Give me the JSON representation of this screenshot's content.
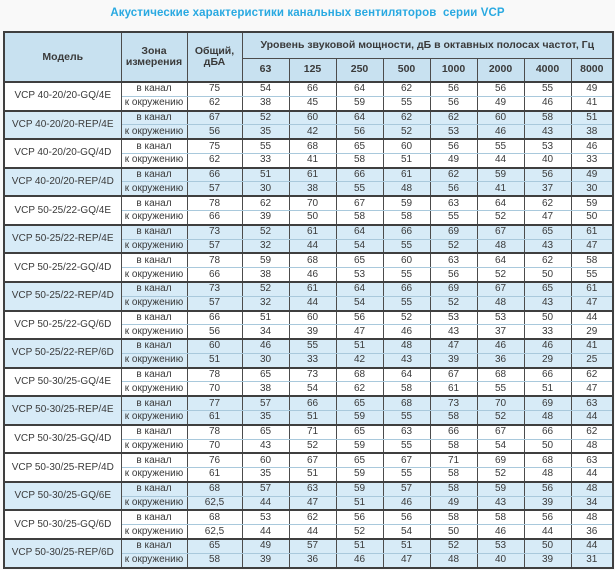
{
  "title": "Акустические характеристики канальных вентиляторов  серии VCP",
  "table": {
    "col_model": "Модель",
    "col_zone": "Зона измерения",
    "col_total": "Общий, дБА",
    "col_spl": "Уровень звуковой мощности, дБ в октавных полосах частот, Гц",
    "frequencies": [
      "63",
      "125",
      "250",
      "500",
      "1000",
      "2000",
      "4000",
      "8000"
    ],
    "models": [
      {
        "name": "VCP 40-20/20-GQ/4E",
        "shaded": false,
        "rows": [
          {
            "zone": "в канал",
            "total": "75",
            "values": [
              54,
              66,
              64,
              62,
              56,
              56,
              55,
              49
            ]
          },
          {
            "zone": "к окружению",
            "total": "62",
            "values": [
              38,
              45,
              59,
              55,
              56,
              49,
              46,
              41
            ]
          }
        ]
      },
      {
        "name": "VCP 40-20/20-REP/4E",
        "shaded": true,
        "rows": [
          {
            "zone": "в канал",
            "total": "67",
            "values": [
              52,
              60,
              64,
              62,
              62,
              60,
              58,
              51
            ]
          },
          {
            "zone": "к окружению",
            "total": "56",
            "values": [
              35,
              42,
              56,
              52,
              53,
              46,
              43,
              38
            ]
          }
        ]
      },
      {
        "name": "VCP 40-20/20-GQ/4D",
        "shaded": false,
        "rows": [
          {
            "zone": "в канал",
            "total": "75",
            "values": [
              55,
              68,
              65,
              60,
              56,
              55,
              53,
              46
            ]
          },
          {
            "zone": "к окружению",
            "total": "62",
            "values": [
              33,
              41,
              58,
              51,
              49,
              44,
              40,
              33
            ]
          }
        ]
      },
      {
        "name": "VCP 40-20/20-REP/4D",
        "shaded": true,
        "rows": [
          {
            "zone": "в канал",
            "total": "66",
            "values": [
              51,
              61,
              66,
              61,
              62,
              59,
              56,
              49
            ]
          },
          {
            "zone": "к окружению",
            "total": "57",
            "values": [
              30,
              38,
              55,
              48,
              56,
              41,
              37,
              30
            ]
          }
        ]
      },
      {
        "name": "VCP 50-25/22-GQ/4E",
        "shaded": false,
        "rows": [
          {
            "zone": "в канал",
            "total": "78",
            "values": [
              62,
              70,
              67,
              59,
              63,
              64,
              62,
              59
            ]
          },
          {
            "zone": "к окружению",
            "total": "66",
            "values": [
              39,
              50,
              58,
              58,
              55,
              52,
              47,
              50
            ]
          }
        ]
      },
      {
        "name": "VCP 50-25/22-REP/4E",
        "shaded": true,
        "rows": [
          {
            "zone": "в канал",
            "total": "73",
            "values": [
              52,
              61,
              64,
              66,
              69,
              67,
              65,
              61
            ]
          },
          {
            "zone": "к окружению",
            "total": "57",
            "values": [
              32,
              44,
              54,
              55,
              52,
              48,
              43,
              47
            ]
          }
        ]
      },
      {
        "name": "VCP 50-25/22-GQ/4D",
        "shaded": false,
        "rows": [
          {
            "zone": "в канал",
            "total": "78",
            "values": [
              59,
              68,
              65,
              60,
              63,
              64,
              62,
              58
            ]
          },
          {
            "zone": "к окружению",
            "total": "66",
            "values": [
              38,
              46,
              53,
              55,
              56,
              52,
              50,
              55
            ]
          }
        ]
      },
      {
        "name": "VCP 50-25/22-REP/4D",
        "shaded": true,
        "rows": [
          {
            "zone": "в канал",
            "total": "73",
            "values": [
              52,
              61,
              64,
              66,
              69,
              67,
              65,
              61
            ]
          },
          {
            "zone": "к окружению",
            "total": "57",
            "values": [
              32,
              44,
              54,
              55,
              52,
              48,
              43,
              47
            ]
          }
        ]
      },
      {
        "name": "VCP 50-25/22-GQ/6D",
        "shaded": false,
        "rows": [
          {
            "zone": "в канал",
            "total": "66",
            "values": [
              51,
              60,
              56,
              52,
              53,
              53,
              50,
              44
            ]
          },
          {
            "zone": "к окружению",
            "total": "56",
            "values": [
              34,
              39,
              47,
              46,
              43,
              37,
              33,
              29
            ]
          }
        ]
      },
      {
        "name": "VCP 50-25/22-REP/6D",
        "shaded": true,
        "rows": [
          {
            "zone": "в канал",
            "total": "60",
            "values": [
              46,
              55,
              51,
              48,
              47,
              46,
              46,
              41
            ]
          },
          {
            "zone": "к окружению",
            "total": "51",
            "values": [
              30,
              33,
              42,
              43,
              39,
              36,
              29,
              25
            ]
          }
        ]
      },
      {
        "name": "VCP 50-30/25-GQ/4E",
        "shaded": false,
        "rows": [
          {
            "zone": "в канал",
            "total": "78",
            "values": [
              65,
              73,
              68,
              64,
              67,
              68,
              66,
              62
            ]
          },
          {
            "zone": "к окружению",
            "total": "70",
            "values": [
              38,
              54,
              62,
              58,
              61,
              55,
              51,
              47
            ]
          }
        ]
      },
      {
        "name": "VCP 50-30/25-REP/4E",
        "shaded": true,
        "rows": [
          {
            "zone": "в канал",
            "total": "77",
            "values": [
              57,
              66,
              65,
              68,
              73,
              70,
              69,
              63
            ]
          },
          {
            "zone": "к окружению",
            "total": "61",
            "values": [
              35,
              51,
              59,
              55,
              58,
              52,
              48,
              44
            ]
          }
        ]
      },
      {
        "name": "VCP 50-30/25-GQ/4D",
        "shaded": false,
        "rows": [
          {
            "zone": "в канал",
            "total": "78",
            "values": [
              65,
              71,
              65,
              63,
              66,
              67,
              66,
              62
            ]
          },
          {
            "zone": "к окружению",
            "total": "70",
            "values": [
              43,
              52,
              59,
              55,
              58,
              54,
              50,
              48
            ]
          }
        ]
      },
      {
        "name": "VCP 50-30/25-REP/4D",
        "shaded": false,
        "rows": [
          {
            "zone": "в канал",
            "total": "76",
            "values": [
              60,
              67,
              65,
              67,
              71,
              69,
              68,
              63
            ]
          },
          {
            "zone": "к окружению",
            "total": "61",
            "values": [
              35,
              51,
              59,
              55,
              58,
              52,
              48,
              44
            ]
          }
        ]
      },
      {
        "name": "VCP 50-30/25-GQ/6E",
        "shaded": true,
        "rows": [
          {
            "zone": "в канал",
            "total": "68",
            "values": [
              57,
              63,
              59,
              57,
              58,
              59,
              56,
              48
            ]
          },
          {
            "zone": "к окружению",
            "total": "62,5",
            "values": [
              44,
              47,
              51,
              46,
              49,
              43,
              39,
              34
            ]
          }
        ]
      },
      {
        "name": "VCP 50-30/25-GQ/6D",
        "shaded": false,
        "rows": [
          {
            "zone": "в канал",
            "total": "68",
            "values": [
              53,
              62,
              56,
              56,
              58,
              58,
              56,
              48
            ]
          },
          {
            "zone": "к окружению",
            "total": "62,5",
            "values": [
              44,
              44,
              52,
              54,
              50,
              46,
              44,
              36
            ]
          }
        ]
      },
      {
        "name": "VCP 50-30/25-REP/6D",
        "shaded": true,
        "rows": [
          {
            "zone": "в канал",
            "total": "65",
            "values": [
              49,
              57,
              51,
              51,
              52,
              53,
              50,
              44
            ]
          },
          {
            "zone": "к окружению",
            "total": "58",
            "values": [
              39,
              36,
              46,
              47,
              48,
              40,
              39,
              31
            ]
          }
        ]
      }
    ]
  }
}
